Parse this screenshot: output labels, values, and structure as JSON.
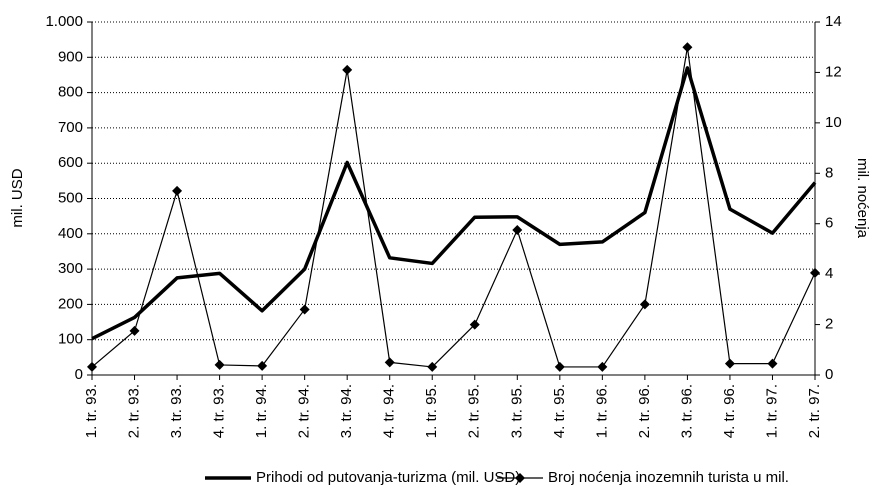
{
  "chart_data": {
    "type": "line",
    "categories": [
      "1. tr. 93.",
      "2. tr. 93.",
      "3. tr. 93.",
      "4. tr. 93.",
      "1. tr. 94.",
      "2. tr. 94.",
      "3. tr. 94.",
      "4. tr. 94.",
      "1. tr. 95.",
      "2. tr. 95.",
      "3. tr. 95.",
      "4. tr. 95.",
      "1. tr. 96.",
      "2. tr. 96.",
      "3. tr. 96.",
      "4. tr. 96.",
      "1. tr. 97.",
      "2. tr. 97."
    ],
    "ylabel": "mil. USD",
    "y2label": "mil. noćenja",
    "ylim": [
      0,
      1000
    ],
    "yticks": [
      0,
      100,
      200,
      300,
      400,
      500,
      600,
      700,
      800,
      900,
      {
        "value": 1000,
        "label": "1.000"
      }
    ],
    "y2lim": [
      0,
      14
    ],
    "y2ticks": [
      0,
      2,
      4,
      6,
      8,
      10,
      12,
      14
    ],
    "grid": true,
    "legend": "bottom",
    "series": [
      {
        "name": "Prihodi od putovanja-turizma (mil. USD)",
        "color": "#000000",
        "values": [
          103,
          163,
          275,
          288,
          182,
          300,
          602,
          332,
          316,
          447,
          448,
          370,
          377,
          460,
          870,
          470,
          402,
          545
        ]
      },
      {
        "name": "Broj noćenja inozemnih turista u mil.",
        "color": "#000000",
        "axis": "y2",
        "marker": "diamond",
        "values": [
          0.32,
          1.75,
          7.3,
          0.4,
          0.36,
          2.6,
          12.1,
          0.5,
          0.32,
          2.0,
          5.75,
          0.32,
          0.32,
          2.8,
          13.0,
          0.45,
          0.45,
          4.05
        ]
      }
    ]
  }
}
